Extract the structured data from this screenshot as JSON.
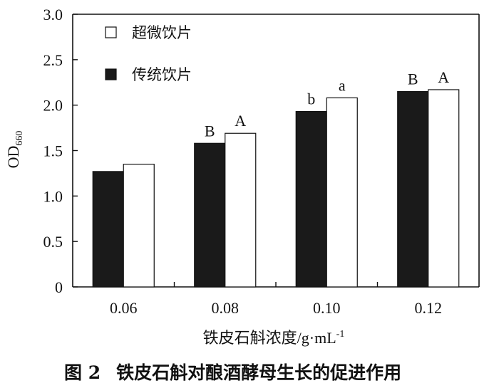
{
  "chart_data": {
    "type": "bar",
    "categories": [
      "0.06",
      "0.08",
      "0.10",
      "0.12"
    ],
    "series": [
      {
        "name": "传统饮片",
        "values": [
          1.27,
          1.58,
          1.93,
          2.15
        ],
        "color": "#1a1a1a",
        "labels": [
          "",
          "B",
          "b",
          "B"
        ]
      },
      {
        "name": "超微饮片",
        "values": [
          1.35,
          1.69,
          2.08,
          2.17
        ],
        "color": "#ffffff",
        "labels": [
          "",
          "A",
          "a",
          "A"
        ]
      }
    ],
    "ylabel_main": "OD",
    "ylabel_sub": "660",
    "xlabel_main": "铁皮石斛浓度/g·mL",
    "xlabel_sup": "-1",
    "ylim": [
      0,
      3.0
    ],
    "yticks": [
      "0",
      "0.5",
      "1.0",
      "1.5",
      "2.0",
      "2.5",
      "3.0"
    ],
    "ytick_values": [
      0,
      0.5,
      1.0,
      1.5,
      2.0,
      2.5,
      3.0
    ],
    "legend_placement": "top-left",
    "grid": false
  },
  "caption": {
    "prefix": "图 2",
    "text": "铁皮石斛对酿酒酵母生长的促进作用"
  }
}
